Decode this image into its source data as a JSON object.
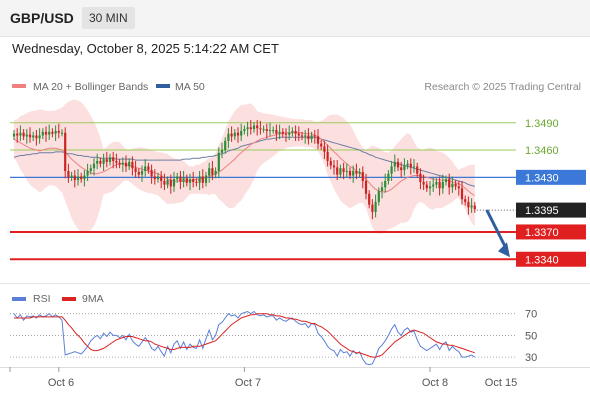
{
  "header": {
    "pair": "GBP/USD",
    "timeframe": "30 MIN",
    "datetime": "Wednesday, October 8, 2025 5:14:22 AM CET"
  },
  "legend": {
    "ma20": "MA 20 + Bollinger Bands",
    "ma50": "MA 50",
    "credit": "Research © 2025 Trading Central",
    "rsi": "RSI",
    "rsi_ma": "9MA"
  },
  "colors": {
    "bullish": "#2e8b3a",
    "bearish": "#cc2222",
    "bollinger_fill": "#fcd9d9",
    "ma20": "#f08080",
    "ma50": "#6d7fa3",
    "pivot": "#3c78d8",
    "support": "#e02020",
    "resistance": "#9ccc5a",
    "current_tag": "#222222",
    "arrow": "#2f5f9f",
    "rsi_line": "#5b7fd6",
    "rsi_ma_line": "#dd2222"
  },
  "chart_data": [
    {
      "type": "candlestick",
      "title": "GBP/USD",
      "x_labels": [
        "Oct 6",
        "Oct 7",
        "Oct 8",
        "Oct 15"
      ],
      "ylim": [
        1.3315,
        1.3515
      ],
      "current_price": "1.3395",
      "levels": [
        {
          "label": "1.3490",
          "value": 1.349,
          "kind": "resistance"
        },
        {
          "label": "1.3460",
          "value": 1.346,
          "kind": "resistance"
        },
        {
          "label": "1.3430",
          "value": 1.343,
          "kind": "pivot"
        },
        {
          "label": "1.3370",
          "value": 1.337,
          "kind": "support"
        },
        {
          "label": "1.3340",
          "value": 1.334,
          "kind": "support"
        }
      ],
      "projection": {
        "from": 1.3394,
        "to": 1.334
      },
      "close": [
        1.3478,
        1.3476,
        1.3479,
        1.3475,
        1.3477,
        1.3474,
        1.3476,
        1.3473,
        1.3476,
        1.348,
        1.3477,
        1.348,
        1.3478,
        1.3481,
        1.3479,
        1.3479,
        1.3437,
        1.343,
        1.3432,
        1.3427,
        1.3431,
        1.3428,
        1.3432,
        1.3437,
        1.344,
        1.3445,
        1.3448,
        1.3445,
        1.345,
        1.3447,
        1.3452,
        1.3448,
        1.3446,
        1.3444,
        1.3446,
        1.3442,
        1.3447,
        1.344,
        1.3436,
        1.3433,
        1.3437,
        1.3442,
        1.3438,
        1.3431,
        1.3428,
        1.3431,
        1.3426,
        1.3422,
        1.3427,
        1.342,
        1.3428,
        1.3431,
        1.3425,
        1.3429,
        1.3424,
        1.3428,
        1.3425,
        1.3424,
        1.3431,
        1.3424,
        1.3432,
        1.344,
        1.3433,
        1.3437,
        1.3457,
        1.346,
        1.347,
        1.3478,
        1.3475,
        1.3479,
        1.3476,
        1.3481,
        1.3483,
        1.3485,
        1.3483,
        1.3487,
        1.3484,
        1.3483,
        1.3483,
        1.3481,
        1.3482,
        1.3482,
        1.3478,
        1.348,
        1.3478,
        1.3477,
        1.3479,
        1.3481,
        1.3478,
        1.3476,
        1.3475,
        1.3476,
        1.3472,
        1.3476,
        1.3475,
        1.3467,
        1.3464,
        1.3458,
        1.3448,
        1.3443,
        1.3441,
        1.3433,
        1.344,
        1.3436,
        1.3437,
        1.3432,
        1.3437,
        1.3434,
        1.3436,
        1.3426,
        1.3412,
        1.34,
        1.3392,
        1.3403,
        1.3415,
        1.3419,
        1.3426,
        1.3434,
        1.3442,
        1.3447,
        1.3441,
        1.3438,
        1.3443,
        1.3445,
        1.3441,
        1.3442,
        1.3434,
        1.3425,
        1.3422,
        1.3418,
        1.342,
        1.3422,
        1.3425,
        1.3418,
        1.3425,
        1.3428,
        1.3419,
        1.3423,
        1.342,
        1.3418,
        1.3406,
        1.3403,
        1.3397,
        1.3399,
        1.3395
      ],
      "ma20": [
        1.3472,
        1.347,
        1.3468,
        1.3466,
        1.3464,
        1.3462,
        1.3461,
        1.346,
        1.3459,
        1.346,
        1.3461,
        1.3462,
        1.3462,
        1.3462,
        1.3461,
        1.346,
        1.3457,
        1.3454,
        1.345,
        1.3447,
        1.3444,
        1.3441,
        1.3439,
        1.3437,
        1.3435,
        1.3434,
        1.3434,
        1.3435,
        1.3436,
        1.3438,
        1.344,
        1.3442,
        1.3444,
        1.3445,
        1.3445,
        1.3444,
        1.3443,
        1.3442,
        1.3441,
        1.344,
        1.3439,
        1.3438,
        1.3437,
        1.3436,
        1.3435,
        1.3434,
        1.3432,
        1.343,
        1.3428,
        1.3427,
        1.3426,
        1.3426,
        1.3426,
        1.3426,
        1.3426,
        1.3427,
        1.3427,
        1.3428,
        1.3428,
        1.3429,
        1.343,
        1.3431,
        1.3432,
        1.3434,
        1.3436,
        1.3438,
        1.3441,
        1.3444,
        1.3447,
        1.345,
        1.3454,
        1.3457,
        1.346,
        1.3463,
        1.3466,
        1.3468,
        1.347,
        1.3472,
        1.3473,
        1.3474,
        1.3475,
        1.3476,
        1.3477,
        1.3478,
        1.3478,
        1.3479,
        1.3479,
        1.3479,
        1.3479,
        1.3479,
        1.3479,
        1.3478,
        1.3478,
        1.3478,
        1.3476,
        1.3475,
        1.3472,
        1.3469,
        1.3465,
        1.3462,
        1.3458,
        1.3455,
        1.3451,
        1.3448,
        1.3445,
        1.3442,
        1.344,
        1.3437,
        1.3435,
        1.3432,
        1.3428,
        1.3424,
        1.342,
        1.3417,
        1.3415,
        1.3414,
        1.3414,
        1.3415,
        1.3417,
        1.342,
        1.3423,
        1.3426,
        1.3428,
        1.343,
        1.3431,
        1.3432,
        1.3432,
        1.3432,
        1.3431,
        1.343,
        1.3429,
        1.3428,
        1.3428,
        1.3427,
        1.3427,
        1.3427,
        1.3426,
        1.3425,
        1.3424,
        1.3423,
        1.3421,
        1.3418,
        1.3415,
        1.3412,
        1.341
      ],
      "ma50": [
        1.3452,
        1.3453,
        1.3454,
        1.3454,
        1.3455,
        1.3455,
        1.3456,
        1.3456,
        1.3457,
        1.3457,
        1.3457,
        1.3457,
        1.3457,
        1.3458,
        1.3458,
        1.3458,
        1.3457,
        1.3456,
        1.3456,
        1.3455,
        1.3454,
        1.3454,
        1.3453,
        1.3453,
        1.3452,
        1.3452,
        1.3452,
        1.3451,
        1.3451,
        1.3451,
        1.3451,
        1.3451,
        1.345,
        1.345,
        1.345,
        1.345,
        1.345,
        1.345,
        1.3449,
        1.3449,
        1.3449,
        1.3449,
        1.3449,
        1.3449,
        1.3449,
        1.3449,
        1.3449,
        1.3449,
        1.3449,
        1.3449,
        1.3449,
        1.3449,
        1.3449,
        1.345,
        1.345,
        1.345,
        1.3451,
        1.3451,
        1.3451,
        1.3452,
        1.3452,
        1.3453,
        1.3453,
        1.3454,
        1.3455,
        1.3456,
        1.3457,
        1.3459,
        1.346,
        1.3461,
        1.3462,
        1.3464,
        1.3465,
        1.3466,
        1.3467,
        1.3468,
        1.3469,
        1.347,
        1.3471,
        1.3472,
        1.3472,
        1.3473,
        1.3473,
        1.3474,
        1.3474,
        1.3474,
        1.3474,
        1.3474,
        1.3474,
        1.3474,
        1.3474,
        1.3474,
        1.3474,
        1.3474,
        1.3474,
        1.3473,
        1.3472,
        1.3471,
        1.347,
        1.3469,
        1.3468,
        1.3467,
        1.3466,
        1.3465,
        1.3464,
        1.3463,
        1.3462,
        1.3461,
        1.346,
        1.3458,
        1.3457,
        1.3455,
        1.3454,
        1.3452,
        1.3451,
        1.345,
        1.3449,
        1.3448,
        1.3447,
        1.3446,
        1.3445,
        1.3444,
        1.3443,
        1.3442,
        1.3441,
        1.344,
        1.3439,
        1.3438,
        1.3437,
        1.3436,
        1.3435,
        1.3434,
        1.3433,
        1.3432,
        1.3431,
        1.343,
        1.3429,
        1.3428,
        1.3427,
        1.3426,
        1.3425,
        1.3424,
        1.3422,
        1.3421,
        1.342
      ]
    },
    {
      "type": "line",
      "title": "RSI",
      "yticks": [
        30,
        50,
        70
      ],
      "ylim": [
        20,
        78
      ],
      "series": [
        {
          "name": "RSI",
          "values": [
            70,
            66,
            69,
            64,
            68,
            67,
            68,
            66,
            69,
            67,
            68,
            70,
            67,
            69,
            67,
            64,
            32,
            33,
            34,
            35,
            34,
            33,
            36,
            40,
            45,
            48,
            50,
            47,
            52,
            49,
            53,
            50,
            50,
            48,
            50,
            46,
            51,
            45,
            42,
            40,
            44,
            48,
            44,
            38,
            36,
            40,
            35,
            31,
            40,
            34,
            42,
            45,
            38,
            44,
            37,
            42,
            39,
            38,
            46,
            38,
            47,
            55,
            46,
            50,
            60,
            62,
            66,
            70,
            68,
            69,
            66,
            70,
            71,
            72,
            70,
            72,
            69,
            68,
            69,
            67,
            68,
            68,
            64,
            66,
            64,
            63,
            65,
            66,
            63,
            61,
            60,
            61,
            57,
            61,
            60,
            52,
            49,
            45,
            40,
            37,
            36,
            31,
            37,
            34,
            35,
            31,
            36,
            33,
            35,
            28,
            24,
            23,
            24,
            30,
            38,
            41,
            45,
            50,
            56,
            60,
            53,
            50,
            55,
            57,
            53,
            54,
            46,
            40,
            38,
            36,
            38,
            40,
            42,
            37,
            42,
            44,
            36,
            40,
            37,
            35,
            30,
            30,
            31,
            32,
            30
          ]
        },
        {
          "name": "9MA",
          "values": [
            66,
            66,
            66,
            66,
            66,
            66,
            67,
            67,
            67,
            67,
            67,
            67,
            67,
            67,
            67,
            67,
            64,
            60,
            57,
            53,
            50,
            47,
            43,
            40,
            37,
            36,
            36,
            37,
            38,
            40,
            42,
            44,
            46,
            47,
            48,
            49,
            49,
            49,
            48,
            47,
            46,
            45,
            45,
            44,
            42,
            41,
            40,
            39,
            38,
            37,
            37,
            38,
            39,
            39,
            39,
            39,
            40,
            40,
            40,
            41,
            42,
            43,
            44,
            45,
            48,
            51,
            54,
            57,
            60,
            62,
            64,
            66,
            67,
            68,
            69,
            69,
            70,
            70,
            70,
            70,
            69,
            69,
            68,
            68,
            67,
            66,
            66,
            65,
            65,
            64,
            63,
            63,
            62,
            61,
            61,
            59,
            58,
            56,
            54,
            51,
            48,
            45,
            42,
            40,
            38,
            36,
            35,
            34,
            34,
            33,
            32,
            31,
            30,
            30,
            31,
            32,
            35,
            38,
            41,
            44,
            46,
            48,
            50,
            52,
            54,
            55,
            54,
            53,
            52,
            50,
            48,
            46,
            44,
            43,
            42,
            42,
            41,
            41,
            40,
            39,
            38,
            37,
            36,
            35,
            34
          ]
        }
      ]
    }
  ]
}
